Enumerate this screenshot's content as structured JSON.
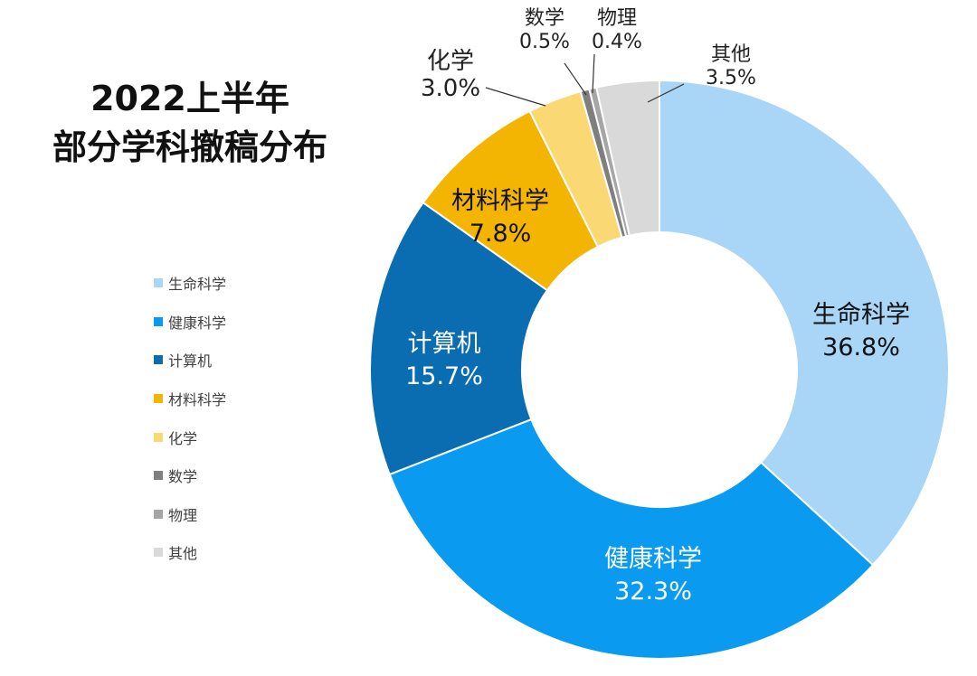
{
  "title": {
    "line1": "2022上半年",
    "line2": "部分学科撤稿分布"
  },
  "chart_data": {
    "type": "pie",
    "donut": true,
    "title": "2022上半年 部分学科撤稿分布",
    "legend_position": "left",
    "slices": [
      {
        "name": "生命科学",
        "value": 36.8,
        "label": "36.8%",
        "color": "#A9D5F6",
        "text_color": "#111111",
        "label_mode": "inside"
      },
      {
        "name": "健康科学",
        "value": 32.3,
        "label": "32.3%",
        "color": "#0A9BF0",
        "text_color": "#ffffff",
        "label_mode": "inside"
      },
      {
        "name": "计算机",
        "value": 15.7,
        "label": "15.7%",
        "color": "#0B6DB1",
        "text_color": "#ffffff",
        "label_mode": "inside"
      },
      {
        "name": "材料科学",
        "value": 7.8,
        "label": "7.8%",
        "color": "#F3B501",
        "text_color": "#111111",
        "label_mode": "inside"
      },
      {
        "name": "化学",
        "value": 3.0,
        "label": "3.0%",
        "color": "#FAD874",
        "text_color": "#222222",
        "label_mode": "outside"
      },
      {
        "name": "数学",
        "value": 0.5,
        "label": "0.5%",
        "color": "#7F7F7F",
        "text_color": "#222222",
        "label_mode": "outside"
      },
      {
        "name": "物理",
        "value": 0.4,
        "label": "0.4%",
        "color": "#A6A6A6",
        "text_color": "#222222",
        "label_mode": "outside"
      },
      {
        "name": "其他",
        "value": 3.5,
        "label": "3.5%",
        "color": "#D9D9D9",
        "text_color": "#222222",
        "label_mode": "outside"
      }
    ]
  }
}
